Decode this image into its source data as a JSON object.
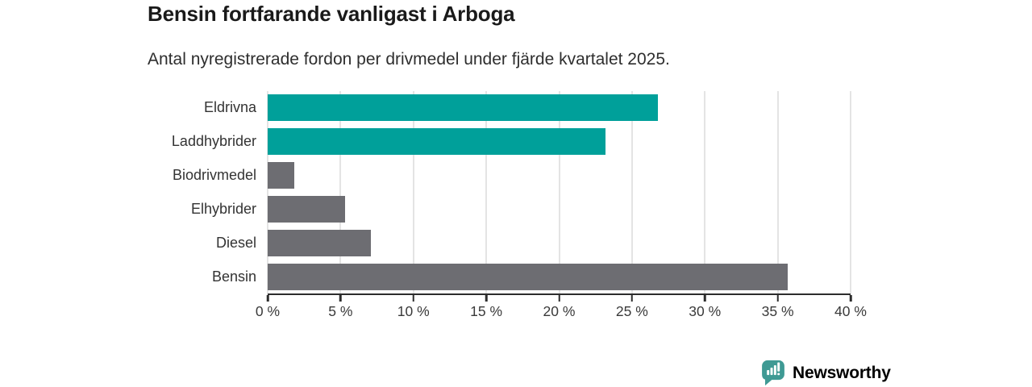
{
  "chart_data": {
    "type": "bar",
    "orientation": "horizontal",
    "title": "Bensin fortfarande vanligast i Arboga",
    "subtitle": "Antal nyregistrerade fordon per drivmedel under fjärde kvartalet 2025.",
    "categories": [
      "Eldrivna",
      "Laddhybrider",
      "Biodrivmedel",
      "Elhybrider",
      "Diesel",
      "Bensin"
    ],
    "values": [
      26.8,
      23.2,
      1.8,
      5.3,
      7.1,
      35.7
    ],
    "unit": "%",
    "xlim": [
      0,
      40
    ],
    "x_ticks": [
      0,
      5,
      10,
      15,
      20,
      25,
      30,
      35,
      40
    ],
    "x_tick_labels": [
      "0 %",
      "5 %",
      "10 %",
      "15 %",
      "20 %",
      "25 %",
      "30 %",
      "35 %",
      "40 %"
    ],
    "grid": true,
    "bar_colors": [
      "#00a09a",
      "#00a09a",
      "#6d6d72",
      "#6d6d72",
      "#6d6d72",
      "#6d6d72"
    ],
    "accent_color": "#00a09a",
    "default_color": "#6d6d72",
    "gridline_color": "#e4e4e4",
    "axis_color": "#2d2d2d",
    "legend": "none"
  },
  "branding": {
    "logo_text": "Newsworthy",
    "logo_color": "#3b948f",
    "logo_icon": "newsworthy-chart-bubble-icon"
  }
}
